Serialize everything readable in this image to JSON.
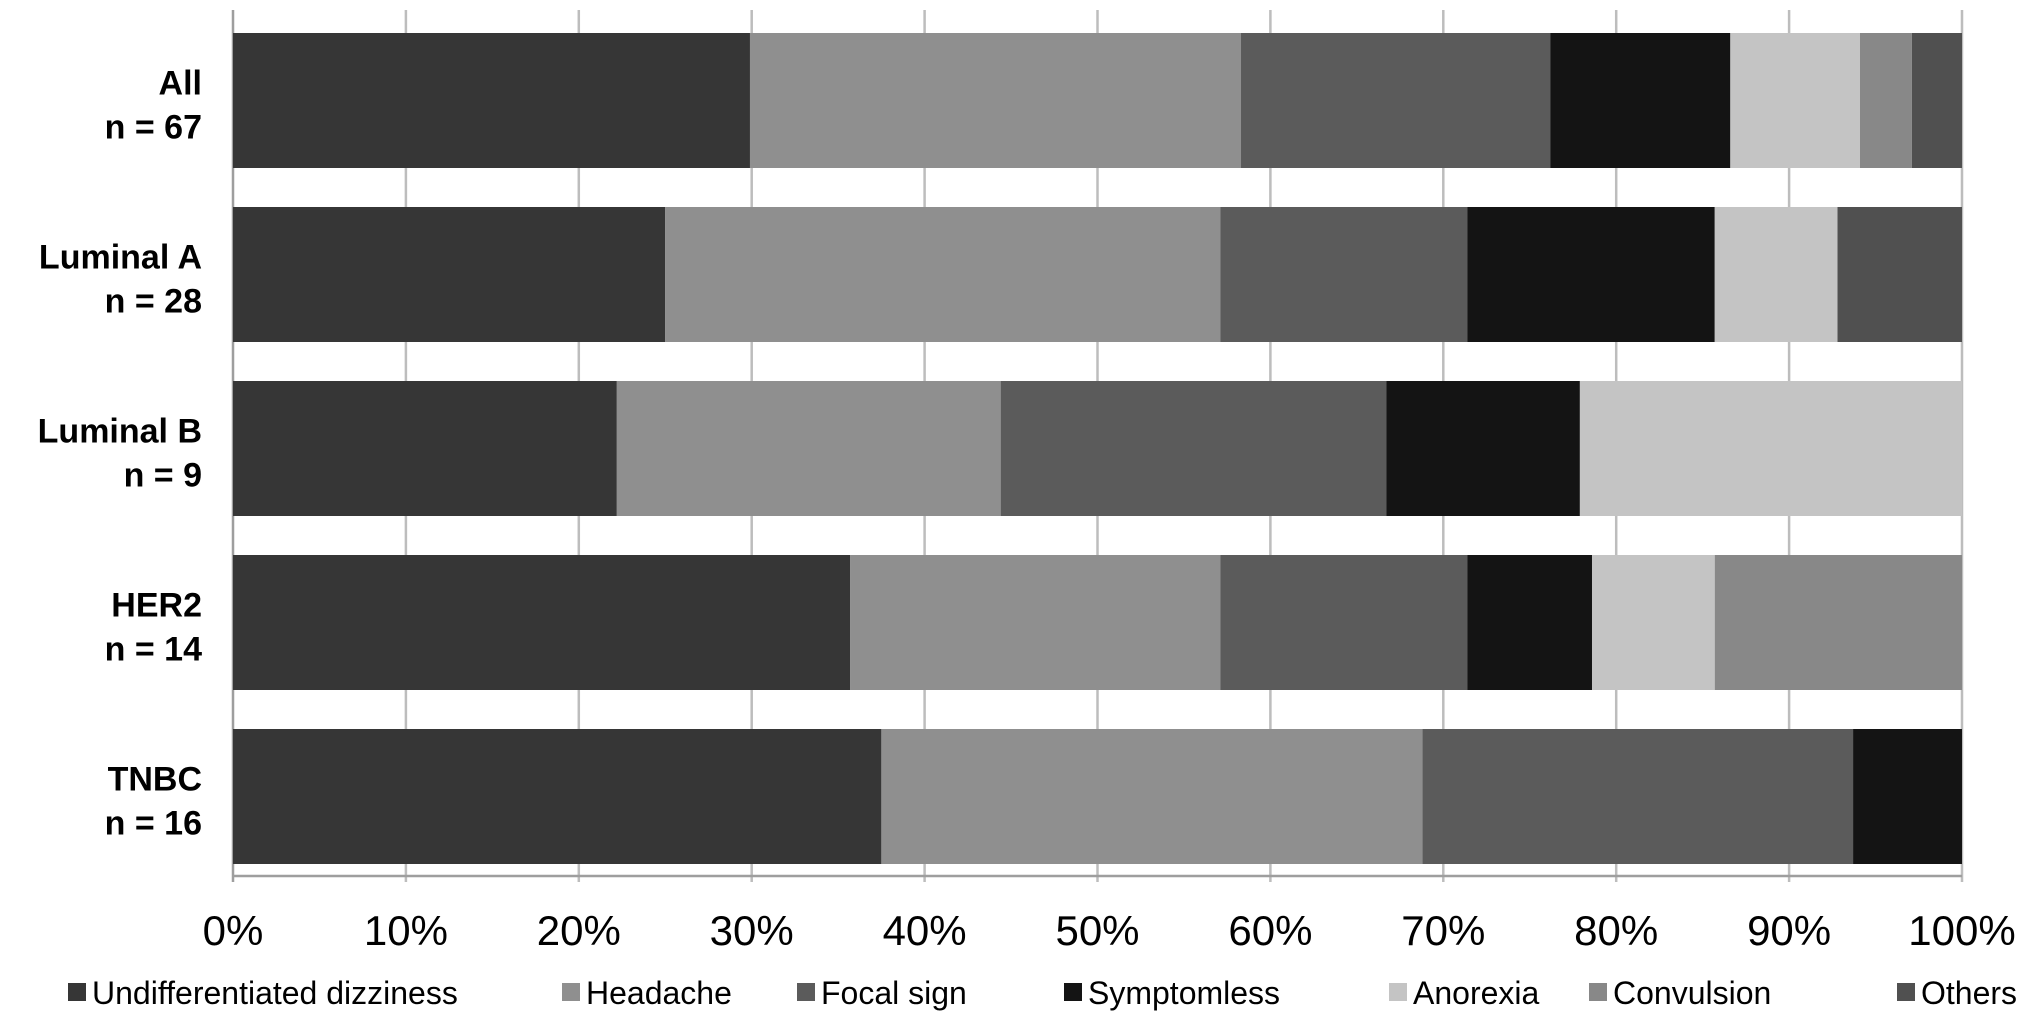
{
  "chart_data": {
    "type": "bar",
    "orientation": "horizontal",
    "stacked": "percent",
    "categories": [
      {
        "name": "All",
        "n": "n = 67"
      },
      {
        "name": "Luminal A",
        "n": "n = 28"
      },
      {
        "name": "Luminal B",
        "n": "n = 9"
      },
      {
        "name": "HER2",
        "n": "n = 14"
      },
      {
        "name": "TNBC",
        "n": "n = 16"
      }
    ],
    "series": [
      {
        "name": "Undifferentiated dizziness",
        "color": "#363636",
        "values": [
          29.9,
          25.0,
          22.2,
          35.7,
          37.5
        ]
      },
      {
        "name": "Headache",
        "color": "#8f8f8f",
        "values": [
          28.4,
          32.1,
          22.2,
          21.4,
          31.3
        ]
      },
      {
        "name": "Focal sign",
        "color": "#5b5b5b",
        "values": [
          17.9,
          14.3,
          22.3,
          14.3,
          24.9
        ]
      },
      {
        "name": "Symptomless",
        "color": "#141414",
        "values": [
          10.4,
          14.3,
          11.2,
          7.2,
          6.3
        ]
      },
      {
        "name": "Anorexia",
        "color": "#c4c4c4",
        "values": [
          7.5,
          7.1,
          22.1,
          7.1,
          0
        ]
      },
      {
        "name": "Convulsion",
        "color": "#888888",
        "values": [
          3.0,
          0,
          0,
          14.3,
          0
        ]
      },
      {
        "name": "Others",
        "color": "#505050",
        "values": [
          2.9,
          7.2,
          0,
          0,
          0
        ]
      }
    ],
    "x_ticks": [
      "0%",
      "10%",
      "20%",
      "30%",
      "40%",
      "50%",
      "60%",
      "70%",
      "80%",
      "90%",
      "100%"
    ],
    "xlim": [
      0,
      100
    ],
    "grid": true,
    "legend_position": "bottom"
  }
}
